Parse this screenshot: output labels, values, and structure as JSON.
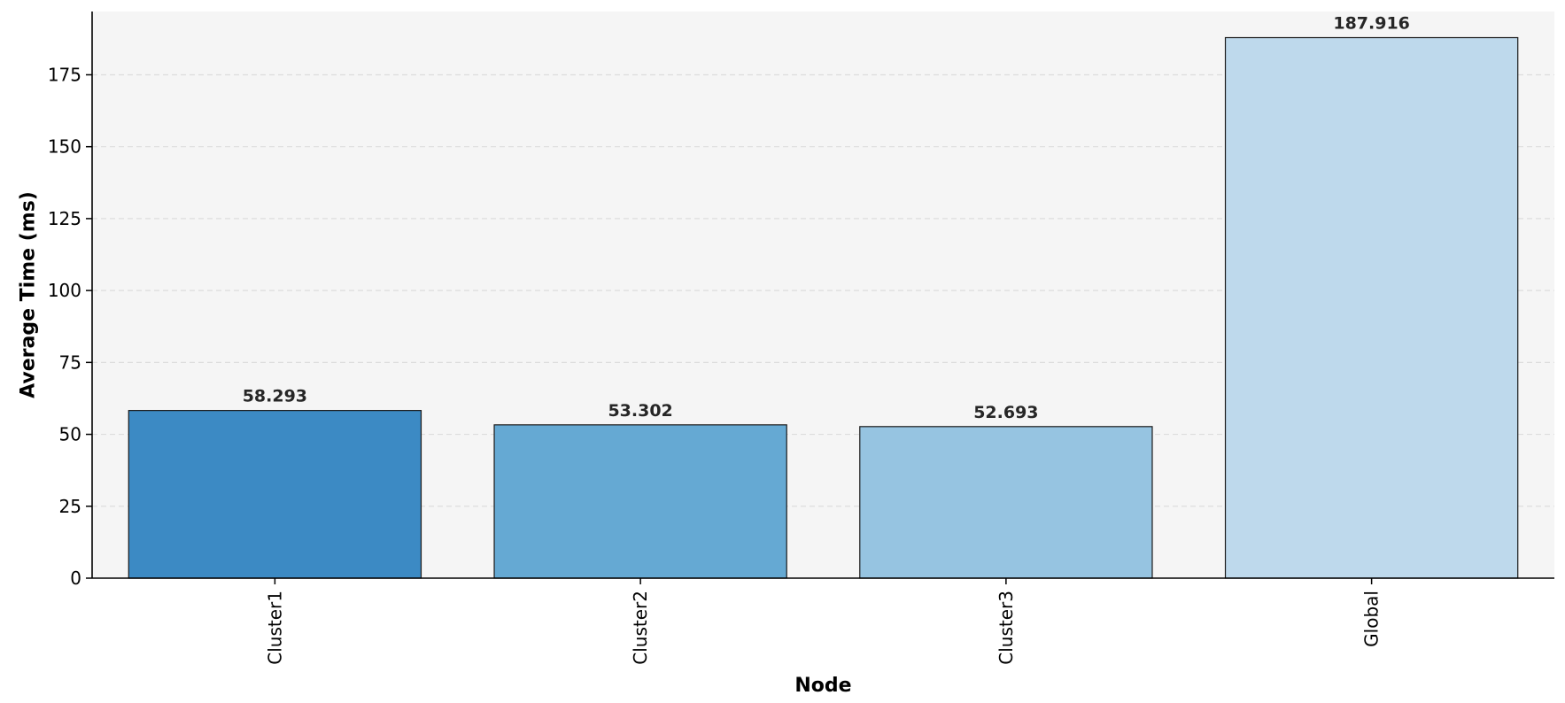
{
  "chart_data": {
    "type": "bar",
    "title": "",
    "xlabel": "Node",
    "ylabel": "Average Time (ms)",
    "categories": [
      "Cluster1",
      "Cluster2",
      "Cluster3",
      "Global"
    ],
    "values": [
      58.293,
      53.302,
      52.693,
      187.916
    ],
    "value_labels": [
      "58.293",
      "53.302",
      "52.693",
      "187.916"
    ],
    "ylim": [
      0,
      197
    ],
    "yticks": [
      0,
      25,
      50,
      75,
      100,
      125,
      150,
      175
    ],
    "grid": "y-dashed",
    "legend": "none",
    "colors": {
      "bars": [
        "#3c8ac4",
        "#65a9d3",
        "#96c4e1",
        "#bed9ec"
      ],
      "bar_edge": "#1a1a1a",
      "plot_background": "#f5f5f5",
      "grid": "#dddddd",
      "axis": "#000000",
      "value_label": "#262626"
    }
  }
}
